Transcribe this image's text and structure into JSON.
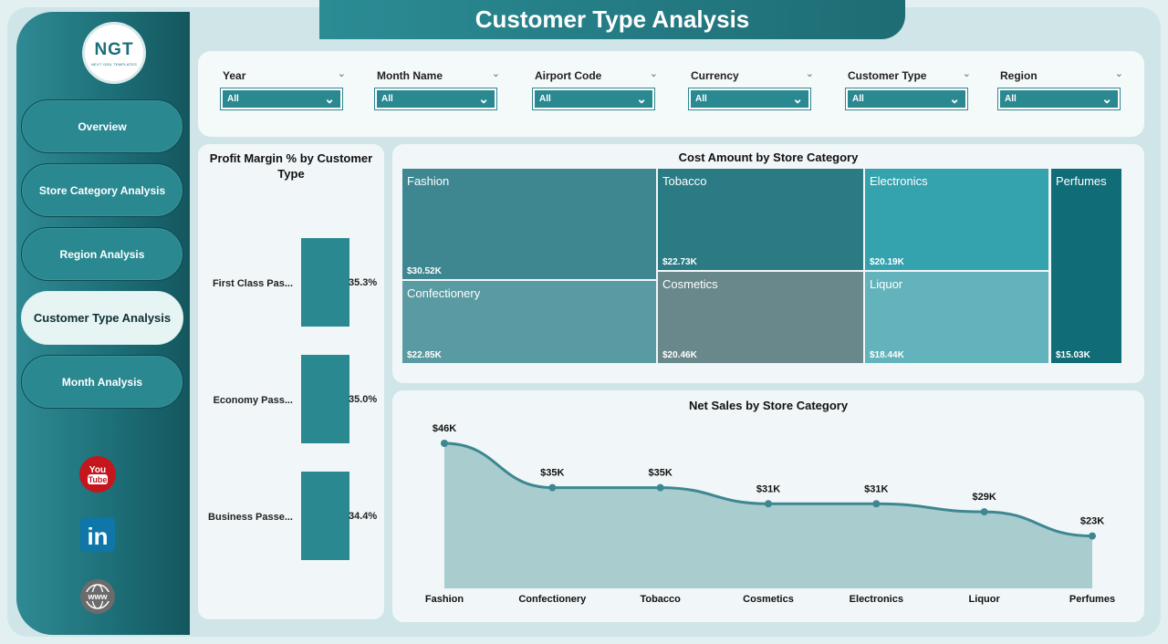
{
  "page": {
    "title": "Customer Type Analysis"
  },
  "logo": {
    "text": "NGT",
    "subtext": "NEXT GEN TEMPLATES"
  },
  "nav": [
    {
      "label": "Overview",
      "active": false
    },
    {
      "label": "Store Category Analysis",
      "active": false
    },
    {
      "label": "Region Analysis",
      "active": false
    },
    {
      "label": "Customer Type Analysis",
      "active": true
    },
    {
      "label": "Month Analysis",
      "active": false
    }
  ],
  "social": [
    {
      "icon": "youtube-icon",
      "text": "You Tube"
    },
    {
      "icon": "linkedin-icon",
      "text": "in"
    },
    {
      "icon": "website-icon",
      "text": "www"
    }
  ],
  "filters": [
    {
      "label": "Year",
      "value": "All"
    },
    {
      "label": "Month Name",
      "value": "All"
    },
    {
      "label": "Airport Code",
      "value": "All"
    },
    {
      "label": "Currency",
      "value": "All"
    },
    {
      "label": "Customer Type",
      "value": "All"
    },
    {
      "label": "Region",
      "value": "All"
    }
  ],
  "colors": {
    "accent": "#2a8891",
    "sidebar_dark": "#14565e",
    "area_fill": "#a9cccf",
    "line": "#3e8791"
  },
  "profit_margin": {
    "title": "Profit Margin % by Customer Type",
    "rows": [
      {
        "label": "First Class Pas...",
        "value": 35.3,
        "display": "35.3%"
      },
      {
        "label": "Economy Pass...",
        "value": 35.0,
        "display": "35.0%"
      },
      {
        "label": "Business Passe...",
        "value": 34.4,
        "display": "34.4%"
      }
    ]
  },
  "cost_treemap": {
    "title": "Cost Amount by Store Category",
    "cells": [
      {
        "name": "Fashion",
        "value": "$30.52K",
        "color": "#3e8791"
      },
      {
        "name": "Tobacco",
        "value": "$22.73K",
        "color": "#2a7b84"
      },
      {
        "name": "Electronics",
        "value": "$20.19K",
        "color": "#34a3ae"
      },
      {
        "name": "Perfumes",
        "value": "$15.03K",
        "color": "#106d77"
      },
      {
        "name": "Confectionery",
        "value": "$22.85K",
        "color": "#5a9aa2"
      },
      {
        "name": "Cosmetics",
        "value": "$20.46K",
        "color": "#68888b"
      },
      {
        "name": "Liquor",
        "value": "$18.44K",
        "color": "#62b3bb"
      }
    ]
  },
  "chart_data": {
    "type": "area",
    "title": "Net Sales by Store Category",
    "categories": [
      "Fashion",
      "Confectionery",
      "Tobacco",
      "Cosmetics",
      "Electronics",
      "Liquor",
      "Perfumes"
    ],
    "values": [
      46,
      35,
      35,
      31,
      31,
      29,
      23
    ],
    "labels": [
      "$46K",
      "$35K",
      "$35K",
      "$31K",
      "$31K",
      "$29K",
      "$23K"
    ],
    "unit": "K",
    "ylim": [
      0,
      46
    ],
    "grid": false
  }
}
